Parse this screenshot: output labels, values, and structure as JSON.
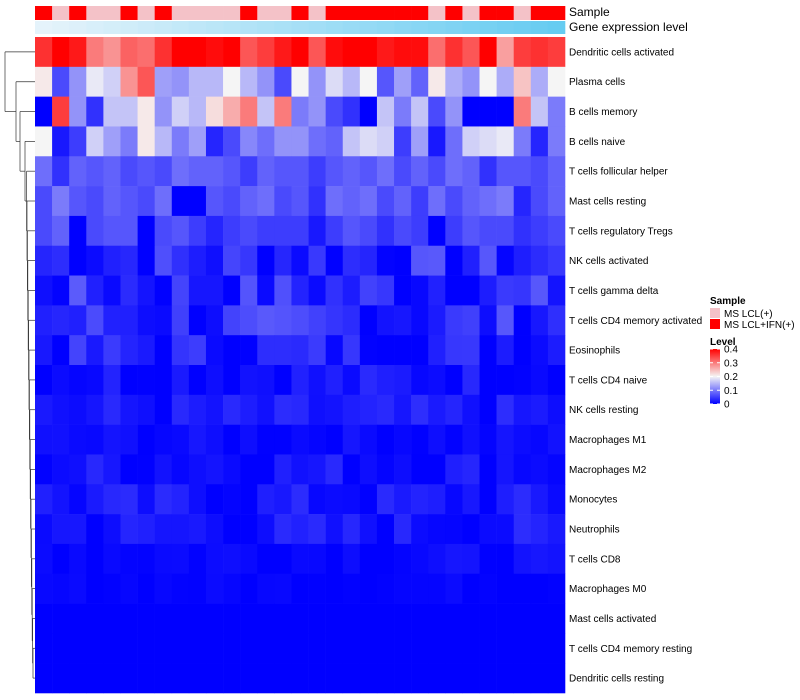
{
  "chart_data": {
    "type": "heatmap",
    "annotation_labels": {
      "sample": "Sample",
      "expression": "Gene expression level"
    },
    "sample_groups": [
      "MS LCL(+)",
      "MS LCL+IFN(+)"
    ],
    "sample_annotation": [
      1,
      0,
      1,
      0,
      0,
      1,
      0,
      1,
      0,
      0,
      0,
      0,
      1,
      0,
      0,
      1,
      0,
      1,
      1,
      1,
      1,
      1,
      1,
      0,
      1,
      0,
      1,
      1,
      0,
      1,
      1
    ],
    "expression_level": [
      0.02,
      0.05,
      0.08,
      0.11,
      0.14,
      0.17,
      0.2,
      0.23,
      0.26,
      0.29,
      0.32,
      0.35,
      0.38,
      0.41,
      0.44,
      0.47,
      0.5,
      0.53,
      0.56,
      0.59,
      0.62,
      0.65,
      0.68,
      0.71,
      0.74,
      0.77,
      0.8,
      0.83,
      0.86,
      0.89,
      0.92
    ],
    "rows": [
      "Dendritic cells activated",
      "Plasma cells",
      "B cells memory",
      "B cells naive",
      "T cells follicular helper",
      "Mast cells resting",
      "T cells regulatory  Tregs",
      "NK cells activated",
      "T cells gamma delta",
      "T cells CD4 memory activated",
      "Eosinophils",
      "T cells CD4 naive",
      "NK cells resting",
      "Macrophages M1",
      "Macrophages M2",
      "Monocytes",
      "Neutrophils",
      "T cells CD8",
      "Macrophages M0",
      "Mast cells activated",
      "T cells CD4 memory resting",
      "Dendritic cells resting"
    ],
    "row_means": [
      0.37,
      0.17,
      0.14,
      0.11,
      0.07,
      0.06,
      0.05,
      0.04,
      0.04,
      0.04,
      0.03,
      0.02,
      0.02,
      0.01,
      0.02,
      0.02,
      0.02,
      0.01,
      0.005,
      0,
      0,
      0
    ],
    "pattern": {
      "0": [
        0.36,
        0.45,
        0.38,
        0.3,
        0.28,
        0.32,
        0.31,
        0.36,
        0.41,
        0.41,
        0.39,
        0.42,
        0.33,
        0.35,
        0.38,
        0.41,
        0.33,
        0.39,
        0.41,
        0.41,
        0.38,
        0.39,
        0.39,
        0.31,
        0.36,
        0.33,
        0.4,
        0.27,
        0.35,
        0.36,
        0.35
      ],
      "1": [
        0.21,
        0.06,
        0.12,
        0.19,
        0.17,
        0.28,
        0.33,
        0.13,
        0.12,
        0.15,
        0.15,
        0.2,
        0.15,
        0.12,
        0.06,
        0.2,
        0.12,
        0.18,
        0.15,
        0.2,
        0.07,
        0.13,
        0.08,
        0.21,
        0.14,
        0.12,
        0.2,
        0.14,
        0.24,
        0.14,
        0.2
      ],
      "2": [
        0.0,
        0.35,
        0.12,
        0.04,
        0.16,
        0.16,
        0.21,
        0.12,
        0.17,
        0.15,
        0.22,
        0.26,
        0.3,
        0.16,
        0.3,
        0.1,
        0.12,
        0.06,
        0.04,
        0.0,
        0.16,
        0.1,
        0.16,
        0.06,
        0.12,
        0.0,
        0.0,
        0.0,
        0.3,
        0.16,
        0.1
      ],
      "3": [
        0.2,
        0.02,
        0.05,
        0.17,
        0.13,
        0.1,
        0.21,
        0.15,
        0.1,
        0.13,
        0.03,
        0.06,
        0.11,
        0.09,
        0.12,
        0.12,
        0.09,
        0.08,
        0.16,
        0.18,
        0.17,
        0.05,
        0.13,
        0.02,
        0.09,
        0.17,
        0.18,
        0.19,
        0.1,
        0.03,
        0.1
      ],
      "4": [
        0.09,
        0.04,
        0.08,
        0.07,
        0.08,
        0.06,
        0.07,
        0.06,
        0.09,
        0.08,
        0.08,
        0.07,
        0.05,
        0.08,
        0.07,
        0.07,
        0.05,
        0.07,
        0.08,
        0.07,
        0.09,
        0.06,
        0.08,
        0.06,
        0.09,
        0.08,
        0.04,
        0.07,
        0.07,
        0.06,
        0.08
      ],
      "5": [
        0.06,
        0.1,
        0.07,
        0.06,
        0.08,
        0.07,
        0.06,
        0.09,
        0.0,
        0.0,
        0.07,
        0.06,
        0.08,
        0.09,
        0.06,
        0.07,
        0.04,
        0.09,
        0.08,
        0.09,
        0.06,
        0.08,
        0.05,
        0.09,
        0.06,
        0.08,
        0.09,
        0.1,
        0.03,
        0.06,
        0.08
      ],
      "6": [
        0.06,
        0.08,
        0.0,
        0.06,
        0.07,
        0.07,
        0.0,
        0.06,
        0.07,
        0.05,
        0.03,
        0.05,
        0.06,
        0.05,
        0.05,
        0.05,
        0.02,
        0.05,
        0.07,
        0.06,
        0.04,
        0.06,
        0.05,
        0.0,
        0.05,
        0.07,
        0.06,
        0.06,
        0.04,
        0.05,
        0.06
      ]
    },
    "legend": {
      "sample_title": "Sample",
      "level_title": "Level",
      "level_ticks": [
        "0.4",
        "0.3",
        "0.2",
        "0.1",
        "0"
      ],
      "level_values": [
        0.4,
        0.3,
        0.2,
        0.1,
        0
      ]
    },
    "colors": {
      "low": "#0000ff",
      "mid": "#f5f5f5",
      "high": "#ff0000",
      "group0": "#f4c2c8",
      "group1": "#ff0000",
      "expr_low": "#e8f4fb",
      "expr_high": "#5bc8f0"
    },
    "value_range": [
      0,
      0.4
    ]
  }
}
